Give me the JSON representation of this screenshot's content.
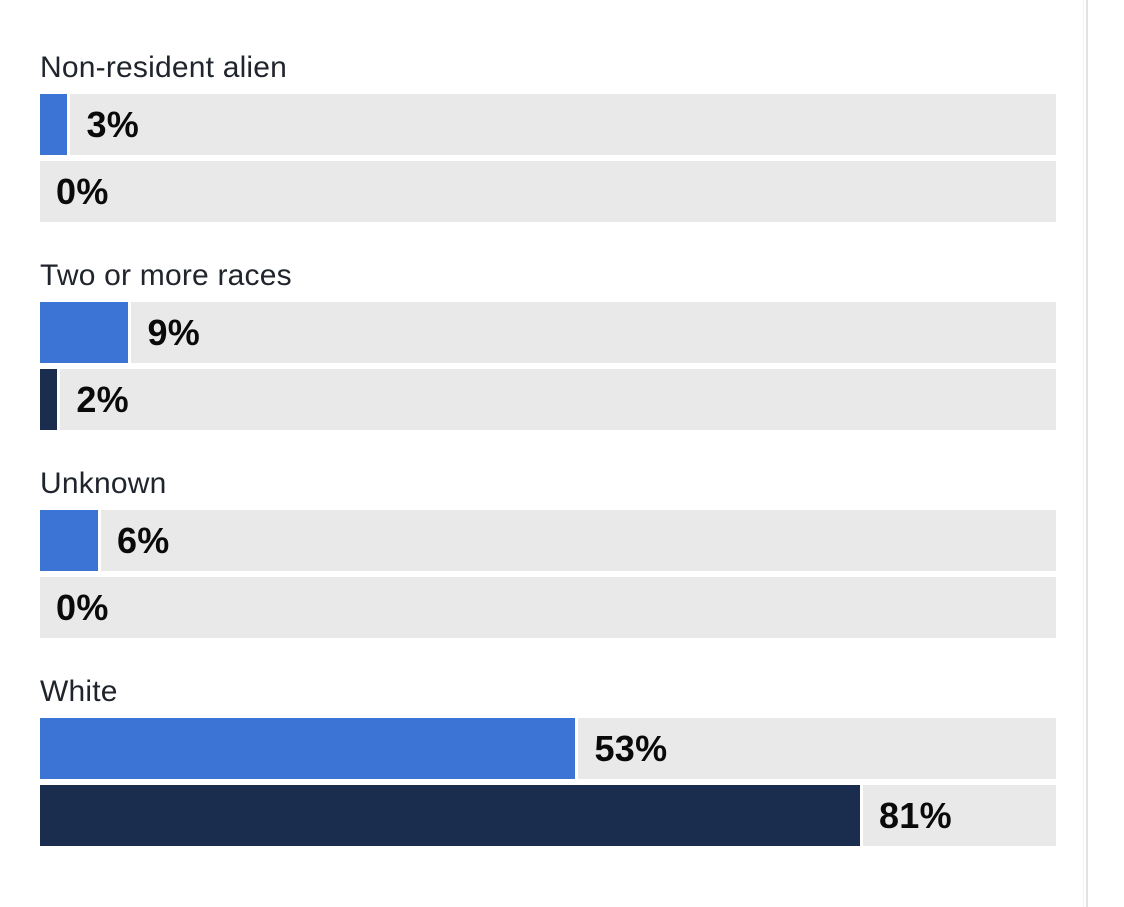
{
  "chart_data": {
    "type": "bar",
    "orientation": "horizontal",
    "title": "",
    "categories": [
      "Non-resident alien",
      "Two or more races",
      "Unknown",
      "White"
    ],
    "series": [
      {
        "name": "series-blue",
        "color": "#3B74D4",
        "values": [
          3,
          9,
          6,
          53
        ],
        "labels": [
          "3%",
          "9%",
          "6%",
          "53%"
        ]
      },
      {
        "name": "series-navy",
        "color": "#1B2D4F",
        "values": [
          0,
          2,
          0,
          81
        ],
        "labels": [
          "0%",
          "2%",
          "0%",
          "81%"
        ]
      }
    ],
    "xlim": [
      0,
      100
    ],
    "value_suffix": "%",
    "grid": false,
    "legend_position": "none",
    "track_color": "#E9E9E9",
    "label_color": "#20242C",
    "value_color": "#0A0A0B"
  },
  "divider": {
    "outer_color": "#F3F3F3",
    "inner_color": "#E3E3E3"
  }
}
